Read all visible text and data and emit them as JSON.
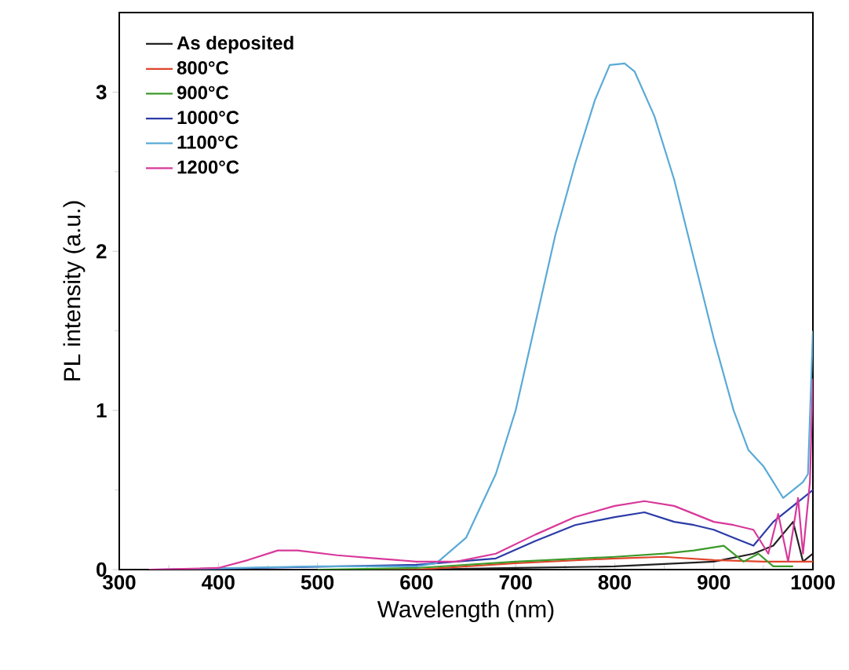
{
  "chart_data": {
    "type": "line",
    "xlabel": "Wavelength (nm)",
    "ylabel": "PL intensity (a.u.)",
    "xlim": [
      300,
      1000
    ],
    "ylim": [
      0,
      3.5
    ],
    "xticks": [
      300,
      400,
      500,
      600,
      700,
      800,
      900,
      1000
    ],
    "yticks": [
      0,
      1,
      2,
      3
    ],
    "legend": "top left",
    "grid": false,
    "series": [
      {
        "name": "As deposited",
        "color": "#222222",
        "x": [
          330,
          500,
          600,
          700,
          800,
          900,
          940,
          960,
          980,
          990,
          1000
        ],
        "values": [
          0,
          0,
          0,
          0.01,
          0.02,
          0.05,
          0.1,
          0.15,
          0.3,
          0.05,
          0.1
        ]
      },
      {
        "name": "800°C",
        "color": "#e0452b",
        "x": [
          500,
          600,
          700,
          800,
          850,
          900,
          950,
          1000
        ],
        "values": [
          0,
          0,
          0.04,
          0.07,
          0.08,
          0.06,
          0.05,
          0.05
        ]
      },
      {
        "name": "900°C",
        "color": "#3c9a2a",
        "x": [
          500,
          600,
          700,
          800,
          850,
          880,
          910,
          930,
          945,
          960,
          980
        ],
        "values": [
          0,
          0.01,
          0.05,
          0.08,
          0.1,
          0.12,
          0.15,
          0.05,
          0.1,
          0.02,
          0.02
        ]
      },
      {
        "name": "1000°C",
        "color": "#2a3ba8",
        "x": [
          350,
          500,
          600,
          680,
          720,
          760,
          800,
          830,
          860,
          880,
          900,
          920,
          940,
          960,
          980,
          1000
        ],
        "values": [
          0,
          null,
          0.03,
          0.07,
          0.18,
          0.28,
          0.33,
          0.36,
          0.3,
          0.28,
          0.25,
          0.2,
          0.15,
          0.3,
          0.4,
          0.5
        ]
      },
      {
        "name": "1100°C",
        "color": "#5aaad6",
        "x": [
          330,
          500,
          600,
          620,
          650,
          680,
          700,
          720,
          740,
          760,
          780,
          795,
          810,
          820,
          840,
          860,
          880,
          900,
          920,
          935,
          950,
          960,
          970,
          980,
          990,
          995,
          1000
        ],
        "values": [
          0,
          0.02,
          0.02,
          0.04,
          0.2,
          0.6,
          1.0,
          1.55,
          2.1,
          2.55,
          2.95,
          3.17,
          3.18,
          3.13,
          2.85,
          2.45,
          1.95,
          1.45,
          1.0,
          0.75,
          0.65,
          0.55,
          0.45,
          0.5,
          0.55,
          0.6,
          1.5
        ]
      },
      {
        "name": "1200°C",
        "color": "#d8389a",
        "x": [
          330,
          400,
          430,
          460,
          480,
          520,
          560,
          600,
          640,
          680,
          720,
          760,
          800,
          830,
          860,
          880,
          900,
          920,
          940,
          955,
          965,
          975,
          985,
          990,
          997,
          1000
        ],
        "values": [
          0,
          0.01,
          0.06,
          0.12,
          0.12,
          0.09,
          0.07,
          0.05,
          0.05,
          0.1,
          0.22,
          0.33,
          0.4,
          0.43,
          0.4,
          0.35,
          0.3,
          0.28,
          0.25,
          0.1,
          0.35,
          0.05,
          0.45,
          0.1,
          0.55,
          1.2
        ]
      }
    ]
  }
}
